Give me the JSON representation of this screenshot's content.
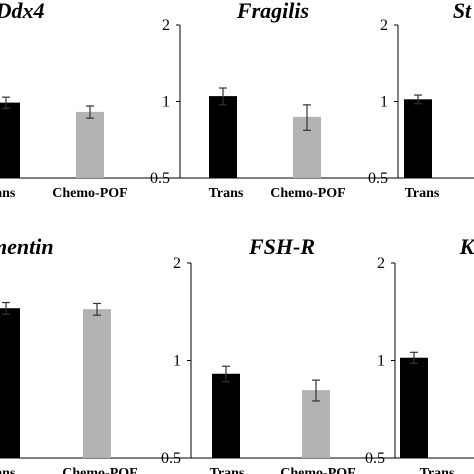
{
  "chart_data": [
    {
      "type": "bar",
      "title": "Ddx4",
      "categories": [
        "Trans",
        "Chemo-POF"
      ],
      "values": [
        0.99,
        0.91
      ],
      "errors": [
        0.05,
        0.05
      ],
      "colors": [
        "#000000",
        "#b3b3b3"
      ],
      "ylim": [
        0.5,
        2
      ],
      "yscale": "log",
      "yticks": [],
      "xlabel": "",
      "ylabel": ""
    },
    {
      "type": "bar",
      "title": "Fragilis",
      "categories": [
        "Trans",
        "Chemo-POF"
      ],
      "values": [
        1.05,
        0.87
      ],
      "errors": [
        0.08,
        0.1
      ],
      "colors": [
        "#000000",
        "#b3b3b3"
      ],
      "ylim": [
        0.5,
        2
      ],
      "yscale": "log",
      "yticks": [
        "0.5",
        "1",
        "2"
      ],
      "xlabel": "",
      "ylabel": ""
    },
    {
      "type": "bar",
      "title": "St",
      "categories": [
        "Trans"
      ],
      "values": [
        1.02
      ],
      "errors": [
        0.04
      ],
      "colors": [
        "#000000"
      ],
      "ylim": [
        0.5,
        2
      ],
      "yscale": "log",
      "yticks": [
        "0.5",
        "1",
        "2"
      ],
      "xlabel": "",
      "ylabel": ""
    },
    {
      "type": "bar",
      "title": "Vimentin",
      "categories": [
        "Trans",
        "Chemo-POF"
      ],
      "values": [
        1.45,
        1.44
      ],
      "errors": [
        0.06,
        0.06
      ],
      "colors": [
        "#000000",
        "#b3b3b3"
      ],
      "ylim": [
        0.5,
        2
      ],
      "yscale": "log",
      "yticks": [],
      "xlabel": "",
      "ylabel": ""
    },
    {
      "type": "bar",
      "title": "FSH-R",
      "categories": [
        "Trans",
        "Chemo-POF"
      ],
      "values": [
        0.91,
        0.81
      ],
      "errors": [
        0.05,
        0.06
      ],
      "colors": [
        "#000000",
        "#b3b3b3"
      ],
      "ylim": [
        0.5,
        2
      ],
      "yscale": "log",
      "yticks": [
        "0.5",
        "1",
        "2"
      ],
      "xlabel": "",
      "ylabel": ""
    },
    {
      "type": "bar",
      "title": "K",
      "categories": [
        "Trans"
      ],
      "values": [
        1.02
      ],
      "errors": [
        0.04
      ],
      "colors": [
        "#000000"
      ],
      "ylim": [
        0.5,
        2
      ],
      "yscale": "log",
      "yticks": [
        "0.5",
        "1",
        "2"
      ],
      "xlabel": "",
      "ylabel": ""
    }
  ]
}
